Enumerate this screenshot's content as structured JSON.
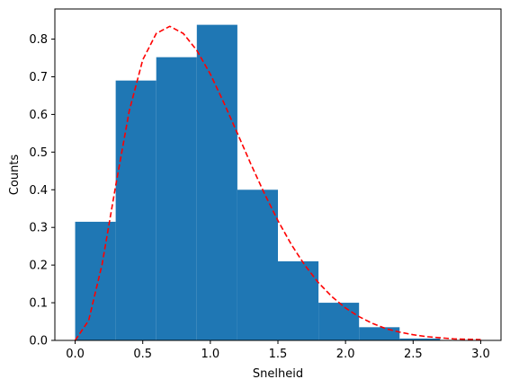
{
  "chart_data": {
    "type": "bar",
    "title": "",
    "xlabel": "Snelheid",
    "ylabel": "Counts",
    "xlim": [
      -0.15,
      3.15
    ],
    "ylim": [
      0,
      0.88
    ],
    "xticks": [
      0.0,
      0.5,
      1.0,
      1.5,
      2.0,
      2.5,
      3.0
    ],
    "xtick_labels": [
      "0.0",
      "0.5",
      "1.0",
      "1.5",
      "2.0",
      "2.5",
      "3.0"
    ],
    "yticks": [
      0.0,
      0.1,
      0.2,
      0.3,
      0.4,
      0.5,
      0.6,
      0.7,
      0.8
    ],
    "ytick_labels": [
      "0.0",
      "0.1",
      "0.2",
      "0.3",
      "0.4",
      "0.5",
      "0.6",
      "0.7",
      "0.8"
    ],
    "grid": false,
    "histogram": {
      "bin_edges": [
        0.0,
        0.3,
        0.6,
        0.9,
        1.2,
        1.5,
        1.8,
        2.1,
        2.4,
        2.7
      ],
      "values": [
        0.315,
        0.69,
        0.752,
        0.838,
        0.4,
        0.21,
        0.1,
        0.035,
        0.005
      ],
      "color": "#1f77b4"
    },
    "curve": {
      "style": "dashed",
      "color": "#ff0000",
      "x": [
        0.0,
        0.1,
        0.2,
        0.3,
        0.4,
        0.5,
        0.6,
        0.7,
        0.8,
        0.9,
        1.0,
        1.1,
        1.2,
        1.3,
        1.4,
        1.5,
        1.6,
        1.7,
        1.8,
        1.9,
        2.0,
        2.1,
        2.2,
        2.3,
        2.4,
        2.5,
        2.6,
        2.7,
        2.8,
        2.9,
        3.0
      ],
      "y": [
        0.0,
        0.053,
        0.203,
        0.411,
        0.609,
        0.745,
        0.815,
        0.834,
        0.815,
        0.77,
        0.707,
        0.631,
        0.55,
        0.468,
        0.39,
        0.318,
        0.254,
        0.199,
        0.153,
        0.116,
        0.086,
        0.063,
        0.045,
        0.031,
        0.022,
        0.015,
        0.01,
        0.007,
        0.004,
        0.003,
        0.002
      ]
    }
  }
}
